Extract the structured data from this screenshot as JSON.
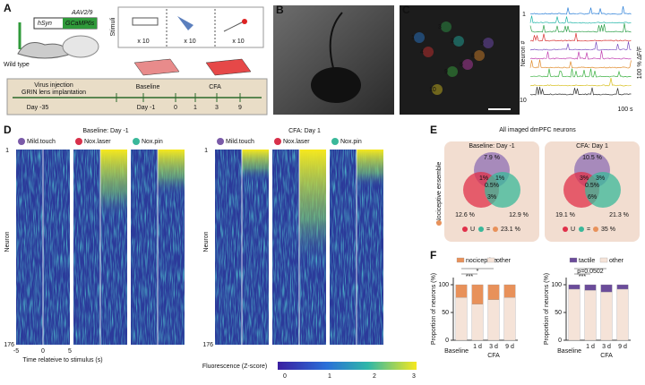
{
  "panel_a": {
    "label": "A",
    "virus": "AAV2/9",
    "promoter": "hSyn",
    "indicator": "GCaMP6s",
    "mouse": "Wild type",
    "stimuli_title": "Stimuli",
    "repeats": [
      "x 10",
      "x 10",
      "x 10"
    ],
    "timeline": {
      "injection": "Virus injection",
      "implant": "GRIN lens implantation",
      "day_injection": "Day -35",
      "baseline": "Baseline",
      "day_baseline": "Day -1",
      "days": [
        "0",
        "1",
        "3",
        "9"
      ],
      "cfa": "CFA"
    }
  },
  "panel_b": {
    "label": "B"
  },
  "panel_c": {
    "label": "C",
    "cell_labels": [
      "1",
      "2",
      "3",
      "4",
      "5",
      "6",
      "8",
      "9",
      "10"
    ],
    "y_label": "Neuron #",
    "first": "1",
    "last": "10",
    "scale_y": "100 % ΔF/F",
    "scale_x": "100 s"
  },
  "panel_d": {
    "label": "D",
    "groups": [
      "Baseline: Day -1",
      "CFA: Day 1"
    ],
    "stimuli": [
      "Mild.touch",
      "Nox.laser",
      "Nox.pin"
    ],
    "y_label": "Neuron",
    "y_top": "1",
    "y_bottom": "176",
    "x_ticks": [
      "-5",
      "0",
      "5"
    ],
    "x_label": "Time relateive to stimulus (s)",
    "colorbar_label": "Fluorescence (Z-score)",
    "colorbar_ticks": [
      "0",
      "1",
      "2",
      "3"
    ]
  },
  "panel_e": {
    "label": "E",
    "title": "All imaged dmPFC neurons",
    "side_label": "Nociceptive ensemble",
    "union_symbol": "U",
    "equals": "=",
    "venns": [
      {
        "title": "Baseline: Day -1",
        "touch": "7.9 %",
        "touch_laser": "1%",
        "touch_pin": "1%",
        "all": "0.5%",
        "laser_pin": "3%",
        "laser": "12.6 %",
        "pin": "12.9 %",
        "union": "23.1 %"
      },
      {
        "title": "CFA: Day 1",
        "touch": "10.5 %",
        "touch_laser": "3%",
        "touch_pin": "3%",
        "all": "0.5%",
        "laser_pin": "6%",
        "laser": "19.1 %",
        "pin": "21.3 %",
        "union": "35 %"
      }
    ]
  },
  "panel_f": {
    "label": "F",
    "charts": [
      {
        "type": "bar",
        "y_label": "Proportion of neurons (%)",
        "categories": [
          "Baseline",
          "1 d",
          "3 d",
          "9 d"
        ],
        "group_label": "CFA",
        "ylim": [
          0,
          100
        ],
        "yticks": [
          0,
          50,
          100
        ],
        "series": [
          {
            "name": "nociceptive",
            "color": "#e8915a",
            "values": [
              23,
              35,
              27,
              23
            ]
          },
          {
            "name": "other",
            "color": "#f5e3d8",
            "values": [
              77,
              65,
              73,
              77
            ]
          }
        ],
        "significance": [
          "***",
          "*"
        ]
      },
      {
        "type": "bar",
        "y_label": "Proportion of neurons (%)",
        "categories": [
          "Baseline",
          "1 d",
          "3 d",
          "9 d"
        ],
        "group_label": "CFA",
        "ylim": [
          0,
          100
        ],
        "yticks": [
          0,
          50,
          100
        ],
        "series": [
          {
            "name": "tactile",
            "color": "#6b4c9a",
            "values": [
              8,
              10,
              13,
              8
            ]
          },
          {
            "name": "other",
            "color": "#f5e3d8",
            "values": [
              92,
              90,
              87,
              92
            ]
          }
        ],
        "significance": [
          "***",
          "p=0.0502"
        ]
      }
    ]
  }
}
